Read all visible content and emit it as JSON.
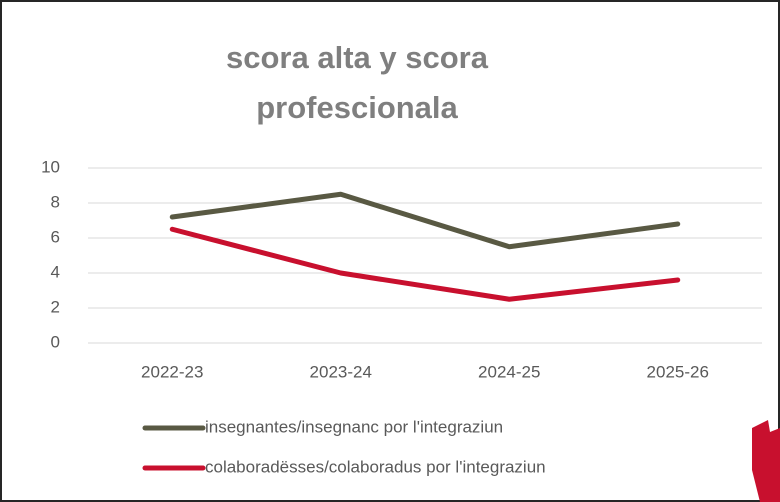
{
  "chart_data": {
    "type": "line",
    "title": [
      "scora alta y scora",
      "profescionala"
    ],
    "categories": [
      "2022-23",
      "2023-24",
      "2024-25",
      "2025-26"
    ],
    "series": [
      {
        "name": "insegnantes/insegnanc por l'integraziun",
        "color": "#595943",
        "values": [
          7.2,
          8.5,
          5.5,
          6.8
        ]
      },
      {
        "name": "colaboradësses/colaboradus por l'integraziun",
        "color": "#c8102e",
        "values": [
          6.5,
          4,
          2.5,
          3.6
        ]
      }
    ],
    "ylim": [
      0,
      10
    ],
    "yticks": [
      0,
      2,
      4,
      6,
      8,
      10
    ],
    "grid": true,
    "legend": "bottom"
  }
}
